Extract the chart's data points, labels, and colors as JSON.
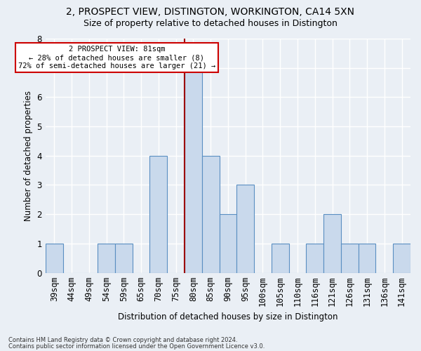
{
  "title1": "2, PROSPECT VIEW, DISTINGTON, WORKINGTON, CA14 5XN",
  "title2": "Size of property relative to detached houses in Distington",
  "xlabel": "Distribution of detached houses by size in Distington",
  "ylabel": "Number of detached properties",
  "categories": [
    "39sqm",
    "44sqm",
    "49sqm",
    "54sqm",
    "59sqm",
    "65sqm",
    "70sqm",
    "75sqm",
    "80sqm",
    "85sqm",
    "90sqm",
    "95sqm",
    "100sqm",
    "105sqm",
    "110sqm",
    "116sqm",
    "121sqm",
    "126sqm",
    "131sqm",
    "136sqm",
    "141sqm"
  ],
  "values": [
    1,
    0,
    0,
    1,
    1,
    0,
    4,
    0,
    7,
    4,
    2,
    3,
    0,
    1,
    0,
    1,
    2,
    1,
    1,
    0,
    1
  ],
  "bar_color": "#c9d9ec",
  "bar_edge_color": "#5a8fc2",
  "highlight_line_color": "#9b0000",
  "vline_x_index": 8,
  "annotation_text": "2 PROSPECT VIEW: 81sqm\n← 28% of detached houses are smaller (8)\n72% of semi-detached houses are larger (21) →",
  "annotation_box_color": "#ffffff",
  "annotation_box_edge": "#cc0000",
  "ylim": [
    0,
    8
  ],
  "yticks": [
    0,
    1,
    2,
    3,
    4,
    5,
    6,
    7,
    8
  ],
  "bg_color": "#eaeff5",
  "plot_bg_color": "#eaeff5",
  "grid_color": "#ffffff",
  "title1_fontsize": 10,
  "title2_fontsize": 9,
  "footnote1": "Contains HM Land Registry data © Crown copyright and database right 2024.",
  "footnote2": "Contains public sector information licensed under the Open Government Licence v3.0."
}
